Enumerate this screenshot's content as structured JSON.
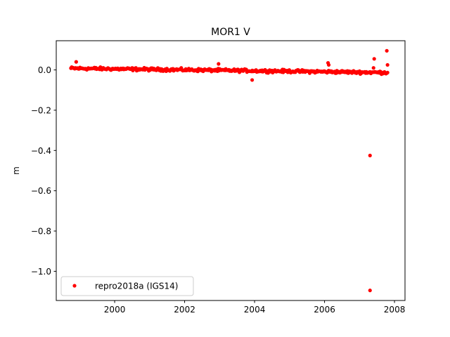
{
  "chart_data": {
    "type": "scatter",
    "title": "MOR1 V",
    "xlabel": "",
    "ylabel": "m",
    "xlim": [
      1998.33,
      2008.3
    ],
    "ylim": [
      -1.145,
      0.145
    ],
    "x_ticks": [
      2000,
      2002,
      2004,
      2006,
      2008
    ],
    "x_tick_labels": [
      "2000",
      "2002",
      "2004",
      "2006",
      "2008"
    ],
    "y_ticks": [
      0.0,
      -0.2,
      -0.4,
      -0.6,
      -0.8,
      -1.0
    ],
    "y_tick_labels": [
      "0.0",
      "−0.2",
      "−0.4",
      "−0.6",
      "−0.8",
      "−1.0"
    ],
    "grid": false,
    "legend_position": "lower-left",
    "colors": {
      "series": "#ff0000"
    },
    "series": [
      {
        "name": "repro2018a (IGS14)",
        "marker": "dot",
        "dense_band": {
          "x_start": 1998.75,
          "x_end": 2007.8,
          "y_start": 0.008,
          "y_end": -0.013,
          "noise": 0.007
        },
        "outliers": [
          {
            "x": 1998.9,
            "y": 0.04
          },
          {
            "x": 2002.97,
            "y": 0.03
          },
          {
            "x": 2003.93,
            "y": -0.05
          },
          {
            "x": 2006.1,
            "y": 0.035
          },
          {
            "x": 2006.12,
            "y": 0.025
          },
          {
            "x": 2007.3,
            "y": -0.425
          },
          {
            "x": 2007.3,
            "y": -1.095
          },
          {
            "x": 2007.42,
            "y": 0.055
          },
          {
            "x": 2007.4,
            "y": 0.01
          },
          {
            "x": 2007.78,
            "y": 0.095
          },
          {
            "x": 2007.8,
            "y": 0.025
          }
        ]
      }
    ]
  }
}
